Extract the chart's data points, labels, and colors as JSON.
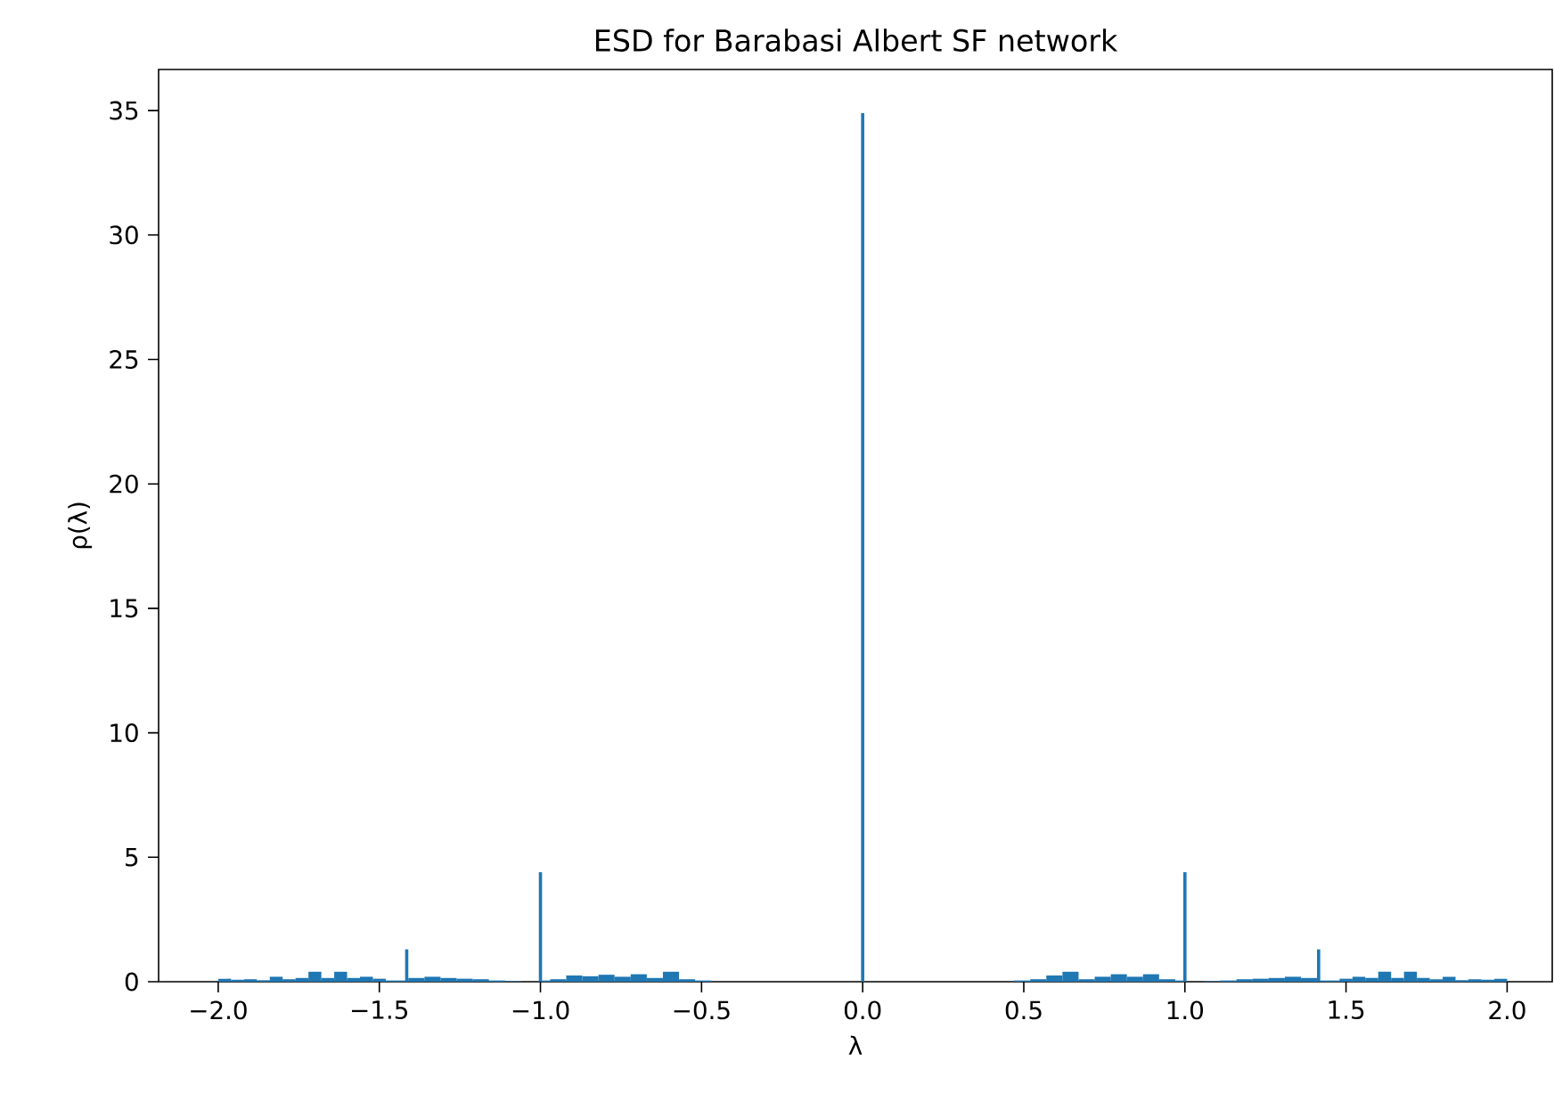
{
  "chart_data": {
    "type": "histogram",
    "title": "ESD for Barabasi Albert SF network",
    "xlabel": "λ",
    "ylabel": "ρ(λ)",
    "color": "#1f77b4",
    "bins": [
      -2.0,
      -1.96,
      -1.92,
      -1.88,
      -1.84,
      -1.8,
      -1.76,
      -1.72,
      -1.68,
      -1.64,
      -1.6,
      -1.56,
      -1.52,
      -1.48,
      -1.44,
      -1.42,
      -1.41,
      -1.36,
      -1.31,
      -1.26,
      -1.21,
      -1.16,
      -1.11,
      -1.06,
      -1.005,
      -0.995,
      -0.97,
      -0.92,
      -0.87,
      -0.82,
      -0.77,
      -0.72,
      -0.67,
      -0.62,
      -0.57,
      -0.52,
      -0.47,
      -0.005,
      0.005,
      0.47,
      0.52,
      0.57,
      0.62,
      0.67,
      0.72,
      0.77,
      0.82,
      0.87,
      0.92,
      0.97,
      0.995,
      1.005,
      1.06,
      1.11,
      1.16,
      1.21,
      1.26,
      1.31,
      1.36,
      1.41,
      1.42,
      1.44,
      1.48,
      1.52,
      1.56,
      1.6,
      1.64,
      1.68,
      1.72,
      1.76,
      1.8,
      1.84,
      1.88,
      1.92,
      1.96,
      2.0
    ],
    "values": [
      0.12,
      0.08,
      0.1,
      0.06,
      0.2,
      0.1,
      0.15,
      0.4,
      0.15,
      0.4,
      0.15,
      0.2,
      0.12,
      0.05,
      0.05,
      1.3,
      0.15,
      0.2,
      0.15,
      0.12,
      0.1,
      0.05,
      0.02,
      0,
      4.4,
      0.05,
      0.1,
      0.25,
      0.22,
      0.28,
      0.2,
      0.3,
      0.15,
      0.4,
      0.1,
      0.05,
      0,
      34.9,
      0,
      0.05,
      0.1,
      0.25,
      0.4,
      0.1,
      0.2,
      0.3,
      0.2,
      0.3,
      0.1,
      0.05,
      4.4,
      0,
      0.02,
      0.05,
      0.1,
      0.12,
      0.15,
      0.2,
      0.15,
      1.3,
      0.05,
      0.05,
      0.12,
      0.2,
      0.15,
      0.4,
      0.15,
      0.4,
      0.15,
      0.1,
      0.2,
      0.06,
      0.1,
      0.08,
      0.12
    ],
    "xlim": [
      -2.185,
      2.14
    ],
    "ylim": [
      0,
      36.65
    ],
    "xticks": [
      {
        "value": -2.0,
        "label": "−2.0"
      },
      {
        "value": -1.5,
        "label": "−1.5"
      },
      {
        "value": -1.0,
        "label": "−1.0"
      },
      {
        "value": -0.5,
        "label": "−0.5"
      },
      {
        "value": 0.0,
        "label": "0.0"
      },
      {
        "value": 0.5,
        "label": "0.5"
      },
      {
        "value": 1.0,
        "label": "1.0"
      },
      {
        "value": 1.5,
        "label": "1.5"
      },
      {
        "value": 2.0,
        "label": "2.0"
      }
    ],
    "yticks": [
      0,
      5,
      10,
      15,
      20,
      25,
      30,
      35
    ]
  }
}
